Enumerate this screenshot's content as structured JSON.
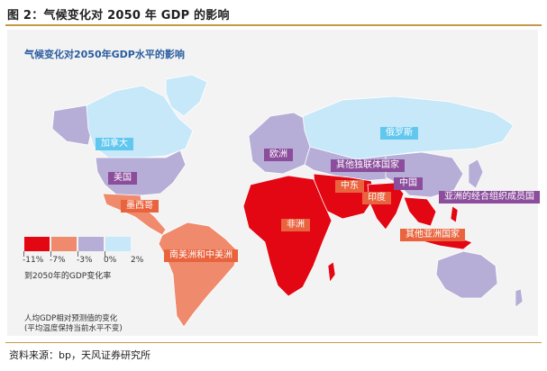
{
  "figure_title": "图 2：气候变化对 2050 年 GDP 的影响",
  "map_title": "气候变化对2050年GDP水平的影响",
  "region_labels": {
    "canada": "加拿大",
    "usa": "美国",
    "mexico": "墨西哥",
    "latam": "南美洲和中美洲",
    "europe": "欧洲",
    "cis": "其他独联体国家",
    "russia": "俄罗斯",
    "middle_east": "中东",
    "africa": "非洲",
    "india": "印度",
    "china": "中国",
    "asean": "亚洲的经合组织成员国",
    "other_asia": "其他亚洲国家"
  },
  "region_impact_class": {
    "canada": "0%~2%",
    "usa": "-3%~0%",
    "mexico": "-7%~-3%",
    "latam": "-7%~-3%",
    "europe": "-3%~0%",
    "cis": "-3%~0%",
    "russia": "0%~2%",
    "middle_east": "-11%~-7%",
    "africa": "-11%~-7%",
    "india": "-11%~-7%",
    "china": "-3%~0%",
    "asean": "-3%~0%",
    "other_asia": "-11%~-7%",
    "australia": "-3%~0%"
  },
  "legend": {
    "ticks": [
      "-11%",
      "-7%",
      "-3%",
      "0%",
      "2%"
    ],
    "colors": [
      "#e30613",
      "#ef8a6d",
      "#b6aed6",
      "#c6e8f9"
    ],
    "caption": "到2050年的GDP变化率"
  },
  "notes": [
    "人均GDP相对预测值的变化",
    "(平均温度保持当前水平不变)"
  ],
  "source": "资料来源：bp，天风证券研究所",
  "colors": {
    "map_heading": "#2a5d9f",
    "rule": "#c49a4a",
    "tag_light": "#62c7ef",
    "tag_purple": "#8b4d9c",
    "tag_orange": "#e9643e"
  }
}
